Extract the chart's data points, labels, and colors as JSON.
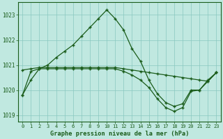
{
  "title": "Graphe pression niveau de la mer (hPa)",
  "background_color": "#c0e8e0",
  "grid_color": "#88c8c0",
  "line_color": "#1a5c1a",
  "x_ticks": [
    0,
    1,
    2,
    3,
    4,
    5,
    6,
    7,
    8,
    9,
    10,
    11,
    12,
    13,
    14,
    15,
    16,
    17,
    18,
    19,
    20,
    21,
    22,
    23
  ],
  "ylim": [
    1018.75,
    1023.5
  ],
  "yticks": [
    1019,
    1020,
    1021,
    1022,
    1023
  ],
  "s1_y": [
    1019.8,
    1020.4,
    1020.85,
    1021.0,
    1021.3,
    1021.55,
    1021.8,
    1022.15,
    1022.5,
    1022.85,
    1023.2,
    1022.85,
    1022.4,
    1021.65,
    1021.15,
    1020.4,
    1019.85,
    1019.5,
    1019.35,
    1019.45,
    1020.0,
    1020.0,
    1020.4,
    1020.7
  ],
  "s2_y": [
    1020.8,
    1020.85,
    1020.9,
    1020.9,
    1020.9,
    1020.9,
    1020.9,
    1020.9,
    1020.9,
    1020.9,
    1020.9,
    1020.9,
    1020.85,
    1020.8,
    1020.75,
    1020.7,
    1020.65,
    1020.6,
    1020.55,
    1020.5,
    1020.45,
    1020.4,
    1020.35,
    1020.7
  ],
  "s3_y": [
    1019.8,
    1020.75,
    1020.85,
    1020.85,
    1020.85,
    1020.85,
    1020.85,
    1020.85,
    1020.85,
    1020.85,
    1020.85,
    1020.85,
    1020.75,
    1020.6,
    1020.4,
    1020.1,
    1019.65,
    1019.3,
    1019.15,
    1019.3,
    1019.95,
    1020.0,
    1020.35,
    1020.7
  ]
}
